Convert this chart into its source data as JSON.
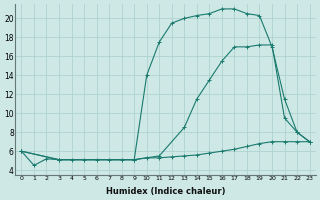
{
  "xlabel": "Humidex (Indice chaleur)",
  "bg_color": "#cde8e5",
  "grid_color": "#aacfcc",
  "line_color": "#1a7a6e",
  "xlim": [
    -0.5,
    23.5
  ],
  "ylim": [
    3.5,
    21.5
  ],
  "xticks": [
    0,
    1,
    2,
    3,
    4,
    5,
    6,
    7,
    8,
    9,
    10,
    11,
    12,
    13,
    14,
    15,
    16,
    17,
    18,
    19,
    20,
    21,
    22,
    23
  ],
  "yticks": [
    4,
    6,
    8,
    10,
    12,
    14,
    16,
    18,
    20
  ],
  "line1_x": [
    0,
    1,
    2,
    3,
    4,
    5,
    6,
    7,
    8,
    9,
    10,
    11,
    12,
    13,
    14,
    15,
    16,
    17,
    18,
    19,
    20,
    21,
    22,
    23
  ],
  "line1_y": [
    6.0,
    4.5,
    5.2,
    5.1,
    5.1,
    5.1,
    5.1,
    5.1,
    5.1,
    5.1,
    5.3,
    5.3,
    5.4,
    5.5,
    5.6,
    5.8,
    6.0,
    6.2,
    6.5,
    6.8,
    7.0,
    7.0,
    7.0,
    7.0
  ],
  "line2_x": [
    0,
    3,
    9,
    11,
    13,
    14,
    15,
    16,
    17,
    18,
    19,
    20,
    21,
    22,
    23
  ],
  "line2_y": [
    6.0,
    5.1,
    5.1,
    5.5,
    8.5,
    11.5,
    13.5,
    15.5,
    17.0,
    17.0,
    17.2,
    17.2,
    9.5,
    8.0,
    7.0
  ],
  "line3_x": [
    0,
    3,
    9,
    10,
    11,
    12,
    13,
    14,
    15,
    16,
    17,
    18,
    19,
    20,
    21,
    22,
    23
  ],
  "line3_y": [
    6.0,
    5.1,
    5.1,
    14.0,
    17.5,
    19.5,
    20.0,
    20.3,
    20.5,
    21.0,
    21.0,
    20.5,
    20.3,
    17.0,
    11.5,
    8.0,
    7.0
  ]
}
